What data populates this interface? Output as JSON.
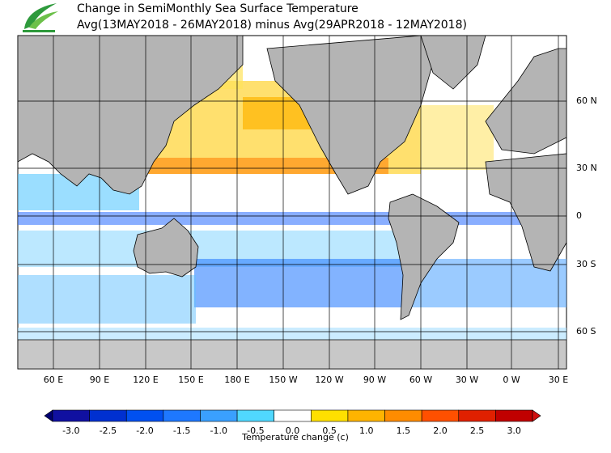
{
  "header": {
    "title_line1": "Change in SemiMonthly Sea Surface Temperature",
    "title_line2": "Avg(13MAY2018 - 26MAY2018) minus Avg(29APR2018 - 12MAY2018)"
  },
  "map": {
    "lon_labels": [
      "60 E",
      "90 E",
      "120 E",
      "150 E",
      "180 E",
      "150 W",
      "120 W",
      "90 W",
      "60 W",
      "30 W",
      "0 W",
      "30 E"
    ],
    "lat_labels": [
      "60 N",
      "30 N",
      "0",
      "30 S",
      "60 S"
    ]
  },
  "colorbar": {
    "ticks": [
      {
        "value": -3,
        "label": "-3.0"
      },
      {
        "value": -2.5,
        "label": "-2.5"
      },
      {
        "value": -2,
        "label": "-2.0"
      },
      {
        "value": -1.5,
        "label": "-1.5"
      },
      {
        "value": -1,
        "label": "-1.0"
      },
      {
        "value": -0.5,
        "label": "-0.5"
      },
      {
        "value": 0,
        "label": "0.0"
      },
      {
        "value": 0.5,
        "label": "0.5"
      },
      {
        "value": 1,
        "label": "1.0"
      },
      {
        "value": 1.5,
        "label": "1.5"
      },
      {
        "value": 2,
        "label": "2.0"
      },
      {
        "value": 2.5,
        "label": "2.5"
      },
      {
        "value": 3,
        "label": "3.0"
      }
    ],
    "colors": [
      "#000070",
      "#1010a0",
      "#0030d0",
      "#0050f0",
      "#1e78ff",
      "#3aa0ff",
      "#50d8ff",
      "#ffffff",
      "#ffe000",
      "#ffb400",
      "#ff8c00",
      "#ff5000",
      "#e02000",
      "#c00000",
      "#d01010"
    ],
    "title": "Temperature change  (c)"
  }
}
